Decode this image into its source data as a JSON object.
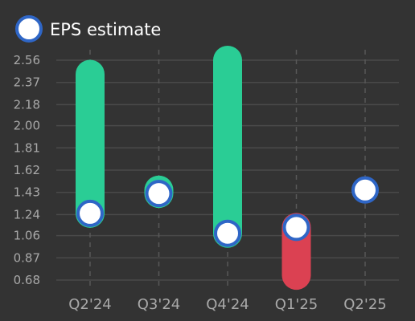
{
  "chart_data": {
    "type": "bar",
    "legend": {
      "label": "EPS estimate",
      "placement": "top-left"
    },
    "categories": [
      "Q2'24",
      "Q3'24",
      "Q4'24",
      "Q1'25",
      "Q2'25"
    ],
    "series": [
      {
        "name": "EPS estimate",
        "values": [
          1.25,
          1.42,
          1.08,
          1.13,
          1.45
        ]
      }
    ],
    "actual_values": [
      2.44,
      1.45,
      2.56,
      0.72,
      null
    ],
    "y_ticks": [
      "2.56",
      "2.37",
      "2.18",
      "2.00",
      "1.81",
      "1.62",
      "1.43",
      "1.24",
      "1.06",
      "0.87",
      "0.68"
    ],
    "ylim": [
      0.68,
      2.56
    ],
    "grid": true,
    "colors": {
      "beat": "#2acd95",
      "miss": "#db4152",
      "marker_fill": "#ffffff",
      "marker_stroke": "#2f66c6",
      "grid": "#4a4a4a",
      "vgrid": "#585858",
      "background": "#333333",
      "tick_text": "#a9a9a9",
      "legend_text": "#ffffff"
    }
  }
}
